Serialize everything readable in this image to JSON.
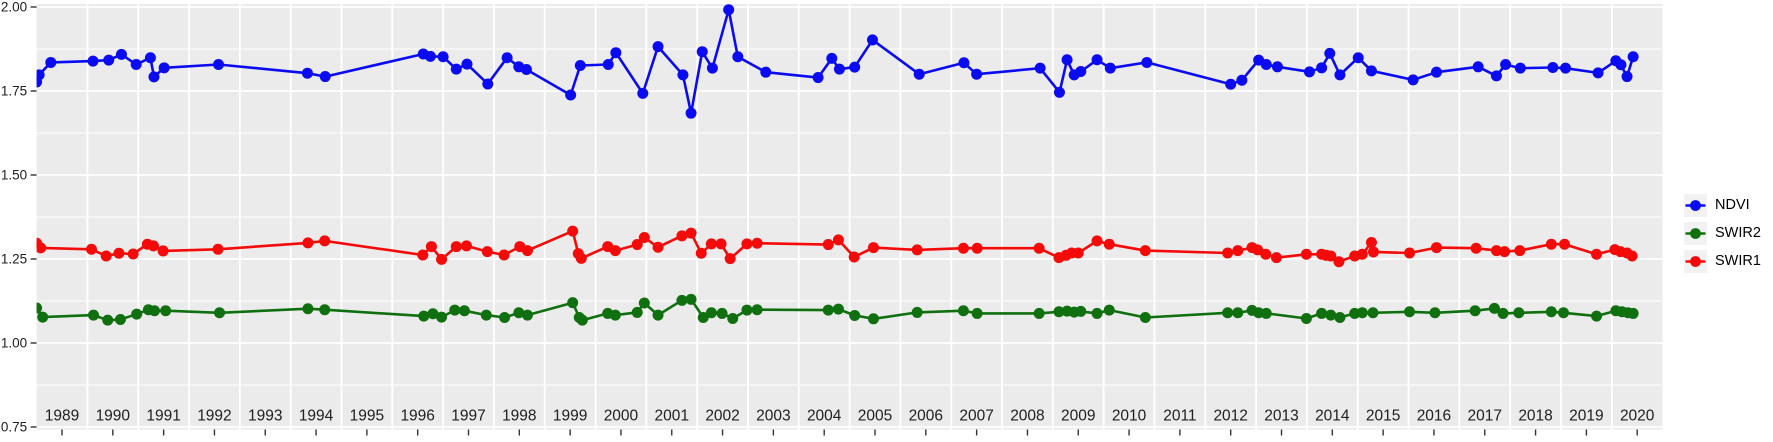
{
  "figure": {
    "background": "#FFFFFF",
    "panel_background": "#EBEBEB",
    "gridline_color": "#FFFFFF",
    "tick_color": "#333333",
    "axis_label_color": "#202020",
    "legend_key_background": "#F2F2F2"
  },
  "chart_data": {
    "type": "line",
    "title": "",
    "xlabel": "",
    "ylabel": "",
    "grid": true,
    "legend_position": "right",
    "x_axis": {
      "year_labels": [
        "1989",
        "1990",
        "1991",
        "1992",
        "1993",
        "1994",
        "1995",
        "1996",
        "1997",
        "1998",
        "1999",
        "2000",
        "2001",
        "2002",
        "2003",
        "2004",
        "2005",
        "2006",
        "2007",
        "2008",
        "2009",
        "2010",
        "2011",
        "2012",
        "2013",
        "2014",
        "2015",
        "2016",
        "2017",
        "2018",
        "2019",
        "2020"
      ],
      "range": [
        1989,
        2021
      ],
      "gridlines_at": "year-boundaries",
      "ticks_at": "mid-year"
    },
    "y_axis": {
      "tick_labels": [
        "0.75",
        "1.00",
        "1.25",
        "1.50",
        "1.75",
        "2.00"
      ],
      "tick_values": [
        0.75,
        1.0,
        1.25,
        1.5,
        1.75,
        2.0
      ],
      "minor_tick_values": [
        0.875,
        1.125,
        1.375,
        1.625,
        1.875
      ],
      "range": [
        0.74,
        2.01
      ]
    },
    "series": [
      {
        "name": "NDVI",
        "color": "#0B0BF2",
        "points": [
          [
            1989.0,
            1.777
          ],
          [
            1989.05,
            1.798
          ],
          [
            1989.28,
            1.835
          ],
          [
            1990.11,
            1.839
          ],
          [
            1990.42,
            1.842
          ],
          [
            1990.67,
            1.859
          ],
          [
            1990.96,
            1.829
          ],
          [
            1991.24,
            1.849
          ],
          [
            1991.31,
            1.792
          ],
          [
            1991.51,
            1.819
          ],
          [
            1992.58,
            1.829
          ],
          [
            1994.33,
            1.803
          ],
          [
            1994.68,
            1.793
          ],
          [
            1996.61,
            1.86
          ],
          [
            1996.75,
            1.853
          ],
          [
            1997.0,
            1.852
          ],
          [
            1997.26,
            1.815
          ],
          [
            1997.47,
            1.83
          ],
          [
            1997.88,
            1.771
          ],
          [
            1998.26,
            1.849
          ],
          [
            1998.49,
            1.822
          ],
          [
            1998.64,
            1.814
          ],
          [
            1999.51,
            1.738
          ],
          [
            1999.7,
            1.826
          ],
          [
            2000.25,
            1.829
          ],
          [
            2000.4,
            1.864
          ],
          [
            2000.93,
            1.743
          ],
          [
            2001.23,
            1.882
          ],
          [
            2001.72,
            1.798
          ],
          [
            2001.88,
            1.684
          ],
          [
            2002.1,
            1.867
          ],
          [
            2002.3,
            1.818
          ],
          [
            2002.62,
            1.992
          ],
          [
            2002.8,
            1.852
          ],
          [
            2003.35,
            1.806
          ],
          [
            2004.38,
            1.79
          ],
          [
            2004.65,
            1.847
          ],
          [
            2004.8,
            1.815
          ],
          [
            2005.1,
            1.821
          ],
          [
            2005.45,
            1.902
          ],
          [
            2006.37,
            1.8
          ],
          [
            2007.25,
            1.834
          ],
          [
            2007.5,
            1.8
          ],
          [
            2008.75,
            1.818
          ],
          [
            2009.13,
            1.746
          ],
          [
            2009.28,
            1.843
          ],
          [
            2009.42,
            1.798
          ],
          [
            2009.55,
            1.808
          ],
          [
            2009.87,
            1.843
          ],
          [
            2010.13,
            1.818
          ],
          [
            2010.85,
            1.835
          ],
          [
            2012.5,
            1.77
          ],
          [
            2012.72,
            1.782
          ],
          [
            2013.05,
            1.842
          ],
          [
            2013.2,
            1.829
          ],
          [
            2013.42,
            1.822
          ],
          [
            2014.05,
            1.807
          ],
          [
            2014.29,
            1.819
          ],
          [
            2014.45,
            1.862
          ],
          [
            2014.65,
            1.798
          ],
          [
            2015.01,
            1.849
          ],
          [
            2015.27,
            1.81
          ],
          [
            2016.09,
            1.783
          ],
          [
            2016.55,
            1.806
          ],
          [
            2017.37,
            1.822
          ],
          [
            2017.73,
            1.795
          ],
          [
            2017.91,
            1.829
          ],
          [
            2018.2,
            1.818
          ],
          [
            2018.84,
            1.82
          ],
          [
            2019.09,
            1.818
          ],
          [
            2019.73,
            1.804
          ],
          [
            2020.08,
            1.84
          ],
          [
            2020.18,
            1.828
          ],
          [
            2020.3,
            1.793
          ],
          [
            2020.42,
            1.852
          ]
        ]
      },
      {
        "name": "SWIR2",
        "color": "#107010",
        "points": [
          [
            1989.0,
            1.104
          ],
          [
            1989.12,
            1.077
          ],
          [
            1990.12,
            1.083
          ],
          [
            1990.4,
            1.068
          ],
          [
            1990.65,
            1.07
          ],
          [
            1990.97,
            1.086
          ],
          [
            1991.2,
            1.099
          ],
          [
            1991.32,
            1.096
          ],
          [
            1991.54,
            1.096
          ],
          [
            1992.6,
            1.09
          ],
          [
            1994.34,
            1.102
          ],
          [
            1994.67,
            1.099
          ],
          [
            1996.62,
            1.08
          ],
          [
            1996.8,
            1.087
          ],
          [
            1996.97,
            1.077
          ],
          [
            1997.23,
            1.098
          ],
          [
            1997.42,
            1.096
          ],
          [
            1997.85,
            1.083
          ],
          [
            1998.21,
            1.076
          ],
          [
            1998.49,
            1.09
          ],
          [
            1998.66,
            1.083
          ],
          [
            1999.55,
            1.12
          ],
          [
            1999.68,
            1.076
          ],
          [
            1999.74,
            1.068
          ],
          [
            2000.24,
            1.088
          ],
          [
            2000.39,
            1.083
          ],
          [
            2000.82,
            1.091
          ],
          [
            2000.96,
            1.119
          ],
          [
            2001.23,
            1.083
          ],
          [
            2001.7,
            1.127
          ],
          [
            2001.88,
            1.13
          ],
          [
            2002.12,
            1.076
          ],
          [
            2002.28,
            1.09
          ],
          [
            2002.49,
            1.088
          ],
          [
            2002.7,
            1.073
          ],
          [
            2002.98,
            1.098
          ],
          [
            2003.18,
            1.099
          ],
          [
            2004.58,
            1.098
          ],
          [
            2004.78,
            1.101
          ],
          [
            2005.1,
            1.082
          ],
          [
            2005.47,
            1.072
          ],
          [
            2006.33,
            1.091
          ],
          [
            2007.24,
            1.096
          ],
          [
            2007.51,
            1.088
          ],
          [
            2008.73,
            1.088
          ],
          [
            2009.12,
            1.093
          ],
          [
            2009.28,
            1.095
          ],
          [
            2009.42,
            1.092
          ],
          [
            2009.55,
            1.094
          ],
          [
            2009.87,
            1.088
          ],
          [
            2010.11,
            1.098
          ],
          [
            2010.82,
            1.076
          ],
          [
            2012.44,
            1.09
          ],
          [
            2012.64,
            1.09
          ],
          [
            2012.92,
            1.097
          ],
          [
            2013.05,
            1.09
          ],
          [
            2013.2,
            1.088
          ],
          [
            2013.99,
            1.073
          ],
          [
            2014.29,
            1.088
          ],
          [
            2014.47,
            1.083
          ],
          [
            2014.65,
            1.076
          ],
          [
            2014.94,
            1.088
          ],
          [
            2015.09,
            1.09
          ],
          [
            2015.3,
            1.09
          ],
          [
            2016.02,
            1.093
          ],
          [
            2016.52,
            1.09
          ],
          [
            2017.31,
            1.096
          ],
          [
            2017.69,
            1.103
          ],
          [
            2017.86,
            1.088
          ],
          [
            2018.17,
            1.09
          ],
          [
            2018.81,
            1.093
          ],
          [
            2019.05,
            1.09
          ],
          [
            2019.7,
            1.08
          ],
          [
            2020.08,
            1.096
          ],
          [
            2020.2,
            1.093
          ],
          [
            2020.32,
            1.09
          ],
          [
            2020.42,
            1.088
          ]
        ]
      },
      {
        "name": "SWIR1",
        "color": "#F50A0A",
        "points": [
          [
            1989.0,
            1.297
          ],
          [
            1989.08,
            1.283
          ],
          [
            1990.08,
            1.279
          ],
          [
            1990.37,
            1.259
          ],
          [
            1990.62,
            1.267
          ],
          [
            1990.9,
            1.265
          ],
          [
            1991.18,
            1.294
          ],
          [
            1991.3,
            1.289
          ],
          [
            1991.49,
            1.274
          ],
          [
            1992.57,
            1.279
          ],
          [
            1994.34,
            1.298
          ],
          [
            1994.67,
            1.304
          ],
          [
            1996.6,
            1.262
          ],
          [
            1996.77,
            1.287
          ],
          [
            1996.97,
            1.249
          ],
          [
            1997.26,
            1.287
          ],
          [
            1997.46,
            1.289
          ],
          [
            1997.87,
            1.272
          ],
          [
            1998.2,
            1.262
          ],
          [
            1998.51,
            1.287
          ],
          [
            1998.66,
            1.275
          ],
          [
            1999.55,
            1.333
          ],
          [
            1999.66,
            1.266
          ],
          [
            1999.72,
            1.252
          ],
          [
            2000.24,
            1.287
          ],
          [
            2000.39,
            1.275
          ],
          [
            2000.82,
            1.293
          ],
          [
            2000.96,
            1.314
          ],
          [
            2001.23,
            1.285
          ],
          [
            2001.7,
            1.319
          ],
          [
            2001.88,
            1.327
          ],
          [
            2002.08,
            1.267
          ],
          [
            2002.28,
            1.295
          ],
          [
            2002.47,
            1.295
          ],
          [
            2002.65,
            1.251
          ],
          [
            2002.98,
            1.295
          ],
          [
            2003.18,
            1.297
          ],
          [
            2004.58,
            1.293
          ],
          [
            2004.78,
            1.307
          ],
          [
            2005.09,
            1.256
          ],
          [
            2005.47,
            1.284
          ],
          [
            2006.33,
            1.277
          ],
          [
            2007.24,
            1.282
          ],
          [
            2007.51,
            1.282
          ],
          [
            2008.73,
            1.282
          ],
          [
            2009.12,
            1.254
          ],
          [
            2009.26,
            1.261
          ],
          [
            2009.37,
            1.268
          ],
          [
            2009.5,
            1.268
          ],
          [
            2009.87,
            1.304
          ],
          [
            2010.11,
            1.294
          ],
          [
            2010.82,
            1.275
          ],
          [
            2012.44,
            1.268
          ],
          [
            2012.64,
            1.275
          ],
          [
            2012.92,
            1.284
          ],
          [
            2013.03,
            1.277
          ],
          [
            2013.19,
            1.264
          ],
          [
            2013.4,
            1.254
          ],
          [
            2013.99,
            1.264
          ],
          [
            2014.29,
            1.264
          ],
          [
            2014.38,
            1.261
          ],
          [
            2014.47,
            1.259
          ],
          [
            2014.63,
            1.242
          ],
          [
            2014.94,
            1.259
          ],
          [
            2015.09,
            1.264
          ],
          [
            2015.27,
            1.299
          ],
          [
            2015.31,
            1.271
          ],
          [
            2016.02,
            1.268
          ],
          [
            2016.55,
            1.284
          ],
          [
            2017.33,
            1.282
          ],
          [
            2017.73,
            1.275
          ],
          [
            2017.89,
            1.272
          ],
          [
            2018.19,
            1.275
          ],
          [
            2018.81,
            1.294
          ],
          [
            2019.07,
            1.294
          ],
          [
            2019.7,
            1.264
          ],
          [
            2020.06,
            1.278
          ],
          [
            2020.17,
            1.272
          ],
          [
            2020.3,
            1.268
          ],
          [
            2020.4,
            1.259
          ]
        ]
      }
    ]
  }
}
